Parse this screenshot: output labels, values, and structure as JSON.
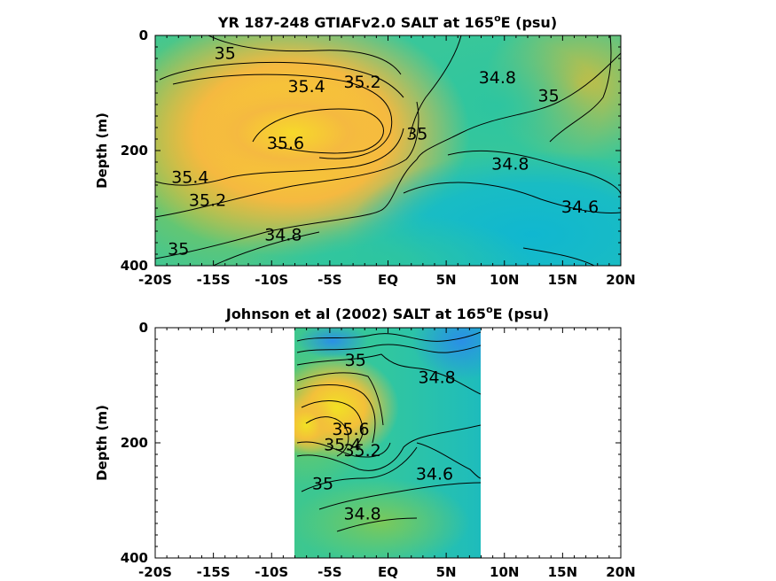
{
  "chart_data": [
    {
      "type": "heatmap",
      "title_prefix": "YR 187-248 GTIAFv2.0 SALT at 165",
      "title_sup": "o",
      "title_suffix": "E (psu)",
      "xlabel": "",
      "ylabel": "Depth (m)",
      "x_ticks": [
        "-20S",
        "-15S",
        "-10S",
        "-5S",
        "EQ",
        "5N",
        "10N",
        "15N",
        "20N"
      ],
      "y_ticks": [
        "0",
        "200",
        "400"
      ],
      "xlim": [
        -20,
        20
      ],
      "ylim": [
        0,
        400
      ],
      "y_reversed": true,
      "colormap": "parula",
      "contour_labels": [
        {
          "text": "35",
          "lat": -14,
          "depth": 30
        },
        {
          "text": "35.4",
          "lat": -7,
          "depth": 88
        },
        {
          "text": "35.2",
          "lat": -2.2,
          "depth": 80
        },
        {
          "text": "34.8",
          "lat": 9.4,
          "depth": 72
        },
        {
          "text": "35",
          "lat": 13.8,
          "depth": 104
        },
        {
          "text": "35.6",
          "lat": -8.8,
          "depth": 186
        },
        {
          "text": "35",
          "lat": 2.5,
          "depth": 170
        },
        {
          "text": "34.8",
          "lat": 10.5,
          "depth": 222
        },
        {
          "text": "35.4",
          "lat": -17,
          "depth": 245
        },
        {
          "text": "35.2",
          "lat": -15.5,
          "depth": 285
        },
        {
          "text": "34.6",
          "lat": 16.5,
          "depth": 297
        },
        {
          "text": "34.8",
          "lat": -9,
          "depth": 345
        },
        {
          "text": "35",
          "lat": -18,
          "depth": 370
        }
      ]
    },
    {
      "type": "heatmap",
      "title_prefix": "Johnson et al (2002) SALT at 165",
      "title_sup": "o",
      "title_suffix": "E (psu)",
      "xlabel": "",
      "ylabel": "Depth (m)",
      "x_ticks": [
        "-20S",
        "-15S",
        "-10S",
        "-5S",
        "EQ",
        "5N",
        "10N",
        "15N",
        "20N"
      ],
      "y_ticks": [
        "0",
        "200",
        "400"
      ],
      "xlim": [
        -20,
        20
      ],
      "ylim": [
        0,
        400
      ],
      "y_reversed": true,
      "data_xlim": [
        -8,
        8
      ],
      "colormap": "parula",
      "contour_labels": [
        {
          "text": "35",
          "lat": -2.8,
          "depth": 55
        },
        {
          "text": "34.8",
          "lat": 4.2,
          "depth": 85
        },
        {
          "text": "35.6",
          "lat": -3.2,
          "depth": 175
        },
        {
          "text": "35.4",
          "lat": -3.9,
          "depth": 202
        },
        {
          "text": "35.2",
          "lat": -2.2,
          "depth": 212
        },
        {
          "text": "34.6",
          "lat": 4,
          "depth": 253
        },
        {
          "text": "35",
          "lat": -5.6,
          "depth": 270
        },
        {
          "text": "34.8",
          "lat": -2.2,
          "depth": 322
        }
      ]
    }
  ]
}
